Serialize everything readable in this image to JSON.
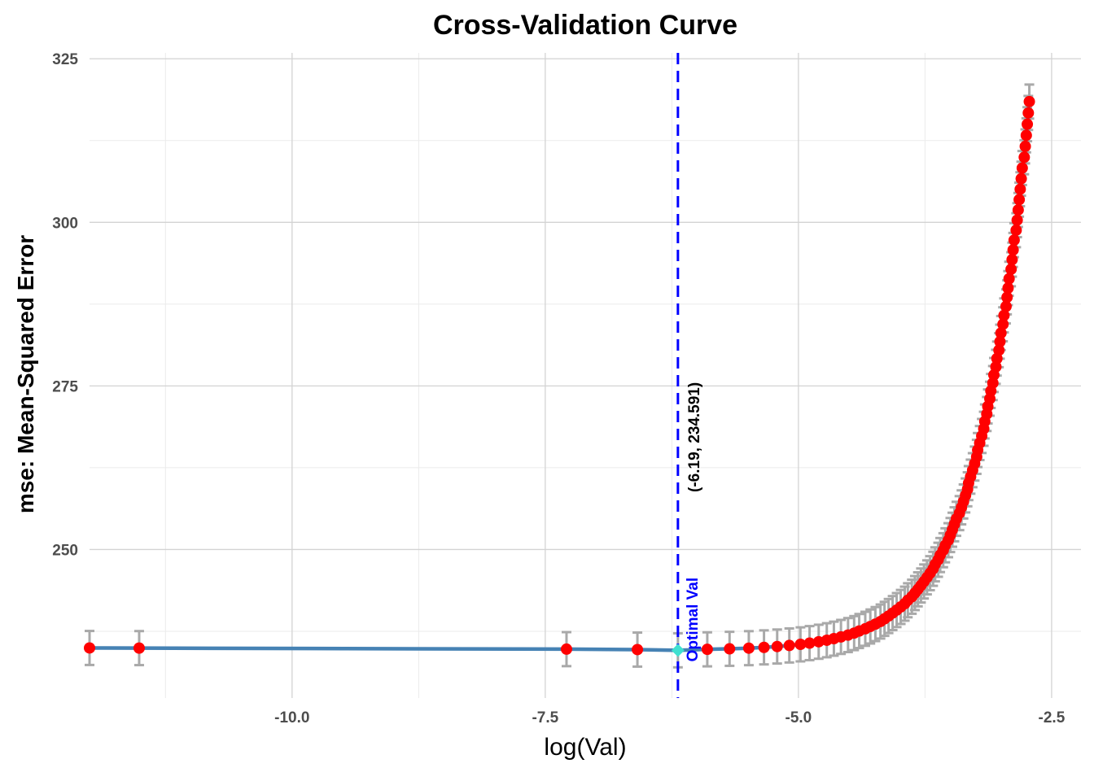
{
  "chart_data": {
    "type": "scatter",
    "title": "Cross-Validation Curve",
    "xlabel": "log(Val)",
    "ylabel": "mse: Mean-Squared Error",
    "xlim": [
      -12.0,
      -2.21
    ],
    "ylim": [
      227.3,
      325.9
    ],
    "x_ticks": [
      -10.0,
      -7.5,
      -5.0,
      -2.5
    ],
    "x_tick_labels": [
      "-10.0",
      "-7.5",
      "-5.0",
      "-2.5"
    ],
    "y_ticks": [
      250,
      275,
      300,
      325
    ],
    "y_tick_labels": [
      "250",
      "275",
      "300",
      "325"
    ],
    "grid": true,
    "legend": "none",
    "colors": {
      "line": "#4682B4",
      "points": "#FF0000",
      "error_bars": "#A9A9A9",
      "optimal_point": "#40E0D0",
      "optimal_line": "#0000FF"
    },
    "error_bar_halfwidth": 2.6,
    "x": [
      -12.0,
      -11.51,
      -7.29,
      -6.59,
      -6.19,
      -5.9,
      -5.68,
      -5.49,
      -5.34,
      -5.21,
      -5.09,
      -4.98,
      -4.89,
      -4.8,
      -4.72,
      -4.65,
      -4.58,
      -4.51,
      -4.45,
      -4.4,
      -4.34,
      -4.29,
      -4.24,
      -4.19,
      -4.15,
      -4.11,
      -4.07,
      -4.03,
      -3.99,
      -3.95,
      -3.92,
      -3.88,
      -3.85,
      -3.82,
      -3.79,
      -3.76,
      -3.73,
      -3.7,
      -3.67,
      -3.65,
      -3.62,
      -3.6,
      -3.57,
      -3.55,
      -3.52,
      -3.5,
      -3.48,
      -3.46,
      -3.44,
      -3.41,
      -3.39,
      -3.37,
      -3.35,
      -3.33,
      -3.32,
      -3.3,
      -3.28,
      -3.26,
      -3.24,
      -3.23,
      -3.21,
      -3.19,
      -3.17,
      -3.16,
      -3.14,
      -3.13,
      -3.11,
      -3.1,
      -3.08,
      -3.07,
      -3.05,
      -3.04,
      -3.02,
      -3.01,
      -3.0,
      -2.98,
      -2.97,
      -2.95,
      -2.94,
      -2.93,
      -2.92,
      -2.9,
      -2.89,
      -2.88,
      -2.87,
      -2.85,
      -2.84,
      -2.83,
      -2.82,
      -2.81,
      -2.8,
      -2.79,
      -2.77,
      -2.76,
      -2.75,
      -2.74,
      -2.73,
      -2.72
    ],
    "y": [
      234.95,
      234.93,
      234.77,
      234.7,
      234.591,
      234.74,
      234.82,
      234.92,
      235.04,
      235.17,
      235.33,
      235.5,
      235.69,
      235.9,
      236.13,
      236.37,
      236.64,
      236.92,
      237.22,
      237.54,
      237.88,
      238.23,
      238.6,
      238.99,
      239.4,
      239.83,
      240.28,
      240.74,
      241.22,
      241.72,
      242.24,
      242.78,
      243.34,
      243.91,
      244.5,
      245.11,
      245.74,
      246.38,
      247.05,
      247.73,
      248.43,
      249.15,
      249.89,
      250.64,
      251.42,
      252.21,
      253.02,
      253.85,
      254.69,
      255.56,
      256.44,
      257.34,
      258.26,
      259.2,
      260.15,
      261.13,
      262.12,
      263.13,
      264.16,
      265.2,
      266.27,
      267.35,
      268.45,
      269.57,
      270.71,
      271.86,
      273.04,
      274.23,
      275.44,
      276.67,
      277.92,
      279.18,
      280.46,
      281.76,
      283.08,
      284.42,
      285.78,
      287.15,
      288.54,
      289.95,
      291.38,
      292.83,
      294.3,
      295.78,
      297.28,
      298.8,
      300.34,
      301.89,
      303.47,
      305.06,
      306.67,
      308.3,
      309.95,
      311.61,
      313.3,
      315.0,
      316.72,
      318.46
    ],
    "optimal": {
      "x": -6.19,
      "y": 234.591,
      "label": "Optimal Val",
      "coord_label": "(-6.19, 234.591)"
    }
  }
}
